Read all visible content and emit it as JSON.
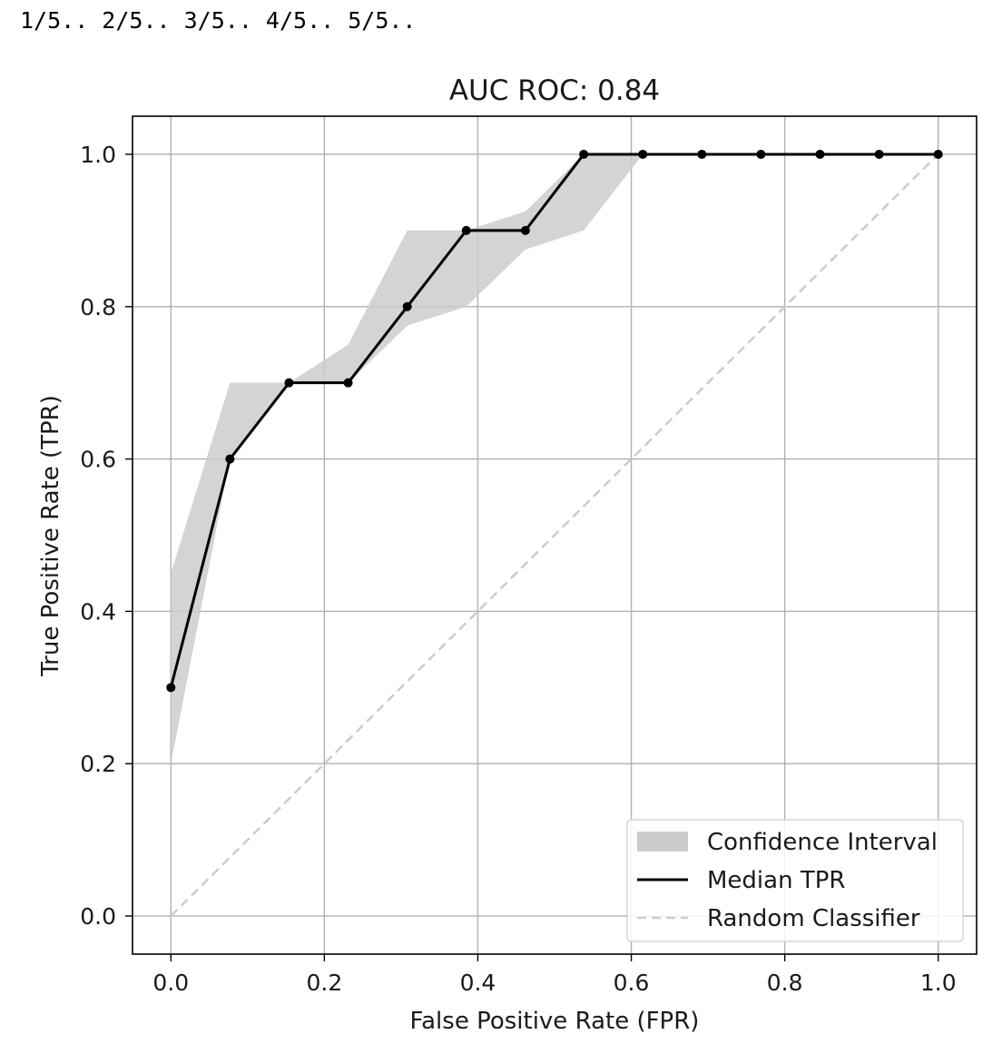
{
  "output": {
    "progress_text": "1/5.. 2/5.. 3/5.. 4/5.. 5/5.."
  },
  "chart_data": {
    "type": "line",
    "title": "AUC ROC: 0.84",
    "xlabel": "False Positive Rate (FPR)",
    "ylabel": "True Positive Rate (TPR)",
    "xlim": [
      -0.05,
      1.05
    ],
    "ylim": [
      -0.05,
      1.05
    ],
    "xticks": [
      0.0,
      0.2,
      0.4,
      0.6,
      0.8,
      1.0
    ],
    "yticks": [
      0.0,
      0.2,
      0.4,
      0.6,
      0.8,
      1.0
    ],
    "xtick_labels": [
      "0.0",
      "0.2",
      "0.4",
      "0.6",
      "0.8",
      "1.0"
    ],
    "ytick_labels": [
      "0.0",
      "0.2",
      "0.4",
      "0.6",
      "0.8",
      "1.0"
    ],
    "grid": true,
    "legend_position": "lower-right",
    "series": [
      {
        "name": "Confidence Interval",
        "kind": "band",
        "color": "#cccccc",
        "x": [
          0.0,
          0.077,
          0.154,
          0.231,
          0.308,
          0.385,
          0.462,
          0.538,
          0.615,
          0.692,
          0.769,
          0.846,
          0.923,
          1.0
        ],
        "lower": [
          0.2,
          0.6,
          0.7,
          0.7,
          0.775,
          0.8,
          0.875,
          0.9,
          1.0,
          1.0,
          1.0,
          1.0,
          1.0,
          1.0
        ],
        "upper": [
          0.45,
          0.7,
          0.7,
          0.75,
          0.9,
          0.9,
          0.925,
          1.0,
          1.0,
          1.0,
          1.0,
          1.0,
          1.0,
          1.0
        ]
      },
      {
        "name": "Median TPR",
        "kind": "line",
        "color": "#000000",
        "markers": true,
        "x": [
          0.0,
          0.077,
          0.154,
          0.231,
          0.308,
          0.385,
          0.462,
          0.538,
          0.615,
          0.692,
          0.769,
          0.846,
          0.923,
          1.0
        ],
        "y": [
          0.3,
          0.6,
          0.7,
          0.7,
          0.8,
          0.9,
          0.9,
          1.0,
          1.0,
          1.0,
          1.0,
          1.0,
          1.0,
          1.0
        ]
      },
      {
        "name": "Random Classifier",
        "kind": "dashed-line",
        "color": "#cccccc",
        "x": [
          0.0,
          1.0
        ],
        "y": [
          0.0,
          1.0
        ]
      }
    ]
  }
}
